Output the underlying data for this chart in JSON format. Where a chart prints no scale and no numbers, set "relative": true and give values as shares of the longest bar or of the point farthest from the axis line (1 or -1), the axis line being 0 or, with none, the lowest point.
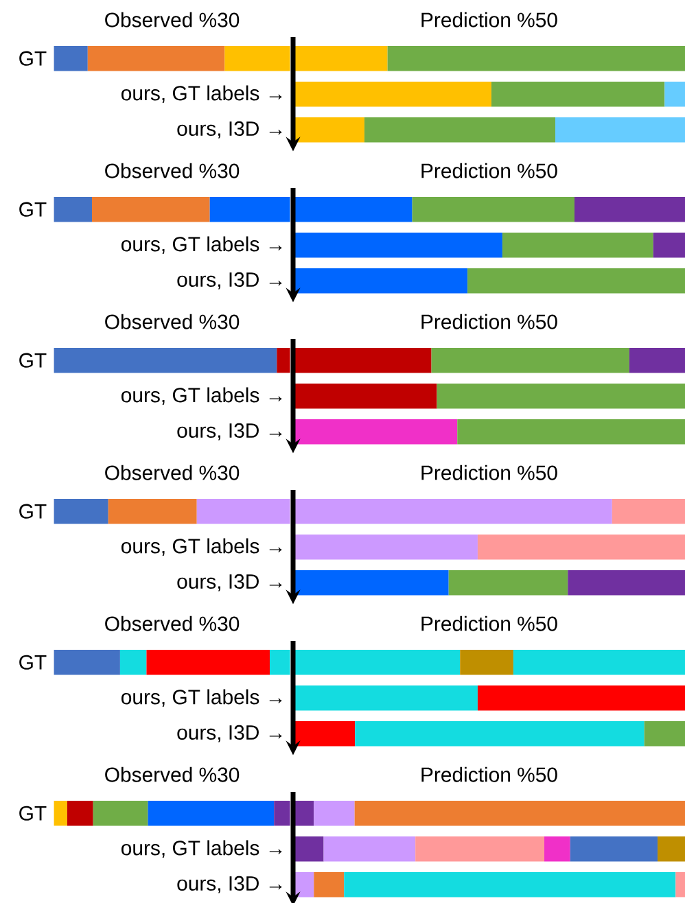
{
  "chart_data": [
    {
      "type": "bar",
      "orientation": "horizontal",
      "stacked": true,
      "relative": true,
      "title": "Observed %30",
      "categories": [
        "GT"
      ],
      "series": [
        {
          "values": [
            0.143
          ],
          "color": "#4472c4"
        },
        {
          "values": [
            0.58
          ],
          "color": "#ed7d31"
        },
        {
          "values": [
            0.277
          ],
          "color": "#ffc000"
        }
      ]
    },
    {
      "type": "bar",
      "orientation": "horizontal",
      "stacked": true,
      "relative": true,
      "title": "Prediction %50",
      "categories": [
        null,
        "ours, GT labels →",
        "ours, I3D →"
      ],
      "series": [
        {
          "values": [
            0.241,
            0.506,
            0.182
          ],
          "colors": [
            "#ffc000",
            "#ffc000",
            "#ffc000"
          ]
        },
        {
          "values": [
            0.759,
            0.442,
            0.487
          ],
          "colors": [
            "#70ad47",
            "#70ad47",
            "#70ad47"
          ]
        },
        {
          "values": [
            null,
            0.052,
            0.331
          ],
          "colors": [
            null,
            "#66ccff",
            "#66ccff"
          ]
        }
      ]
    },
    {
      "type": "bar",
      "orientation": "horizontal",
      "stacked": true,
      "relative": true,
      "title": "Observed %30",
      "categories": [
        "GT"
      ],
      "series": [
        {
          "values": [
            0.161
          ],
          "color": "#4472c4"
        },
        {
          "values": [
            0.499
          ],
          "color": "#ed7d31"
        },
        {
          "values": [
            0.34
          ],
          "color": "#0066ff"
        }
      ]
    },
    {
      "type": "bar",
      "orientation": "horizontal",
      "stacked": true,
      "relative": true,
      "title": "Prediction %50",
      "categories": [
        null,
        "ours, GT labels →",
        "ours, I3D →"
      ],
      "series": [
        {
          "values": [
            0.304,
            0.534,
            0.445
          ],
          "colors": [
            "#0066ff",
            "#0066ff",
            "#0066ff"
          ]
        },
        {
          "values": [
            0.414,
            0.385,
            0.555
          ],
          "colors": [
            "#70ad47",
            "#70ad47",
            "#70ad47"
          ]
        },
        {
          "values": [
            0.282,
            0.081,
            null
          ],
          "colors": [
            "#7030a0",
            "#7030a0",
            null
          ]
        }
      ]
    },
    {
      "type": "bar",
      "orientation": "horizontal",
      "stacked": true,
      "relative": true,
      "title": "Observed %30",
      "categories": [
        "GT"
      ],
      "series": [
        {
          "values": [
            0.944
          ],
          "color": "#4472c4"
        },
        {
          "values": [
            0.056
          ],
          "color": "#c00000"
        }
      ]
    },
    {
      "type": "bar",
      "orientation": "horizontal",
      "stacked": true,
      "relative": true,
      "title": "Prediction %50",
      "categories": [
        null,
        "ours, GT labels →",
        "ours, I3D →"
      ],
      "series": [
        {
          "values": [
            0.353,
            0.367,
            0.419
          ],
          "colors": [
            "#c00000",
            "#c00000",
            "#f030c8"
          ]
        },
        {
          "values": [
            0.505,
            0.633,
            0.581
          ],
          "colors": [
            "#70ad47",
            "#70ad47",
            "#70ad47"
          ]
        },
        {
          "values": [
            0.142,
            null,
            null
          ],
          "colors": [
            "#7030a0",
            null,
            null
          ]
        }
      ]
    },
    {
      "type": "bar",
      "orientation": "horizontal",
      "stacked": true,
      "relative": true,
      "title": "Observed %30",
      "categories": [
        "GT"
      ],
      "series": [
        {
          "values": [
            0.23
          ],
          "color": "#4472c4"
        },
        {
          "values": [
            0.375
          ],
          "color": "#ed7d31"
        },
        {
          "values": [
            0.395
          ],
          "color": "#cc99ff"
        }
      ]
    },
    {
      "type": "bar",
      "orientation": "horizontal",
      "stacked": true,
      "relative": true,
      "title": "Prediction %50",
      "categories": [
        null,
        "ours, GT labels →",
        "ours, I3D →"
      ],
      "series": [
        {
          "values": [
            0.814,
            0.471,
            0.397
          ],
          "colors": [
            "#cc99ff",
            "#cc99ff",
            "#0066ff"
          ]
        },
        {
          "values": [
            0.186,
            0.529,
            0.304
          ],
          "colors": [
            "#ff9999",
            "#ff9999",
            "#70ad47"
          ]
        },
        {
          "values": [
            null,
            null,
            0.299
          ],
          "colors": [
            null,
            null,
            "#7030a0"
          ]
        }
      ]
    },
    {
      "type": "bar",
      "orientation": "horizontal",
      "stacked": true,
      "relative": true,
      "title": "Observed %30",
      "categories": [
        "GT"
      ],
      "series": [
        {
          "values": [
            0.28
          ],
          "color": "#4472c4"
        },
        {
          "values": [
            0.112
          ],
          "color": "#14dce0"
        },
        {
          "values": [
            0.522
          ],
          "color": "#ff0000"
        },
        {
          "values": [
            0.086
          ],
          "color": "#14dce0"
        }
      ]
    },
    {
      "type": "bar",
      "orientation": "horizontal",
      "stacked": true,
      "relative": true,
      "title": "Prediction %50",
      "categories": [
        null,
        "ours, GT labels →",
        "ours, I3D →"
      ],
      "series": [
        {
          "values": [
            0.426,
            0.471,
            0.158
          ],
          "colors": [
            "#14dce0",
            "#14dce0",
            "#ff0000"
          ]
        },
        {
          "values": [
            0.136,
            0.529,
            0.738
          ],
          "colors": [
            "#bf8f00",
            "#ff0000",
            "#14dce0"
          ]
        },
        {
          "values": [
            0.438,
            null,
            0.104
          ],
          "colors": [
            "#14dce0",
            null,
            "#70ad47"
          ]
        }
      ]
    },
    {
      "type": "bar",
      "orientation": "horizontal",
      "stacked": true,
      "relative": true,
      "title": "Observed %30",
      "categories": [
        "GT"
      ],
      "series": [
        {
          "values": [
            0.056
          ],
          "color": "#ffc000"
        },
        {
          "values": [
            0.11
          ],
          "color": "#c00000"
        },
        {
          "values": [
            0.232
          ],
          "color": "#70ad47"
        },
        {
          "values": [
            0.534
          ],
          "color": "#0066ff"
        },
        {
          "values": [
            0.068
          ],
          "color": "#7030a0"
        }
      ]
    },
    {
      "type": "bar",
      "orientation": "horizontal",
      "stacked": true,
      "relative": true,
      "title": "Prediction %50",
      "categories": [
        null,
        "ours, GT labels →",
        "ours, I3D →"
      ],
      "series": [
        {
          "values": [
            0.053,
            0.078,
            0.053
          ],
          "colors": [
            "#7030a0",
            "#7030a0",
            "#cc99ff"
          ]
        },
        {
          "values": [
            0.104,
            0.234,
            0.077
          ],
          "colors": [
            "#cc99ff",
            "#cc99ff",
            "#ed7d31"
          ]
        },
        {
          "values": [
            0.843,
            0.329,
            0.846
          ],
          "colors": [
            "#ed7d31",
            "#ff9999",
            "#14dce0"
          ]
        },
        {
          "values": [
            null,
            0.066,
            0.024
          ],
          "colors": [
            null,
            "#f030c8",
            "#ff9999"
          ]
        },
        {
          "values": [
            null,
            0.223,
            null
          ],
          "colors": [
            null,
            "#4472c4",
            null
          ]
        },
        {
          "values": [
            null,
            0.07,
            null
          ],
          "colors": [
            null,
            "#bf8f00",
            null
          ]
        }
      ]
    }
  ]
}
